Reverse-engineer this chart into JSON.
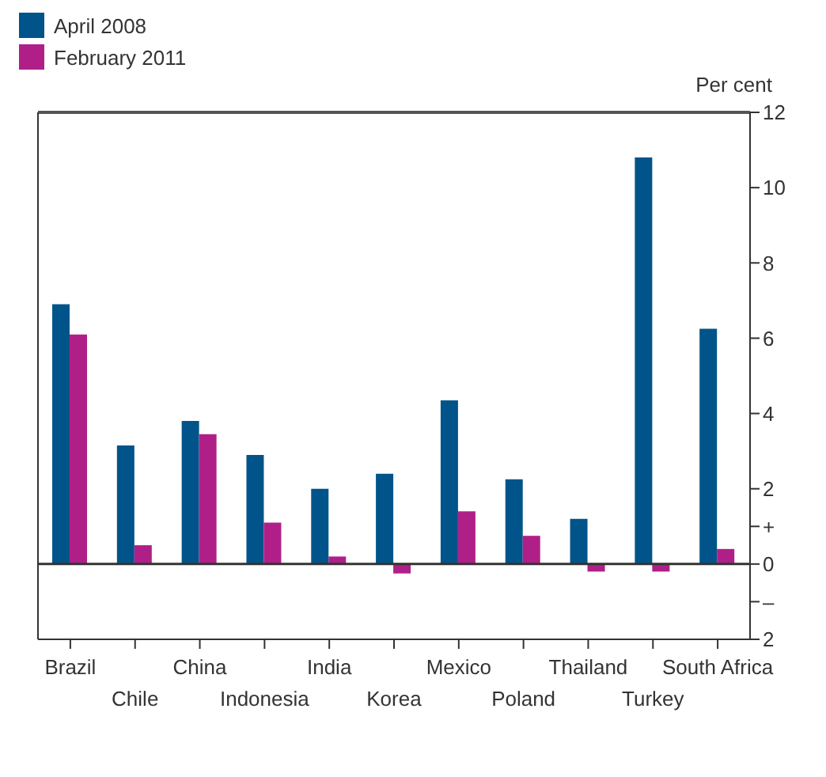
{
  "chart_data": {
    "type": "bar",
    "ylabel": "Per cent",
    "categories": [
      "Brazil",
      "Chile",
      "China",
      "Indonesia",
      "India",
      "Korea",
      "Mexico",
      "Poland",
      "Thailand",
      "Turkey",
      "South Africa"
    ],
    "series": [
      {
        "name": "April 2008",
        "color": "#00548a",
        "values": [
          6.9,
          3.15,
          3.8,
          2.9,
          2.0,
          2.4,
          4.35,
          2.25,
          1.2,
          10.8,
          6.25
        ]
      },
      {
        "name": "February 2011",
        "color": "#b01f88",
        "values": [
          6.1,
          0.5,
          3.45,
          1.1,
          0.2,
          -0.25,
          1.4,
          0.75,
          -0.2,
          -0.2,
          0.4
        ]
      }
    ],
    "ylim": [
      -2,
      12
    ],
    "yticks": [
      {
        "value": -2,
        "label": "2"
      },
      {
        "value": -1,
        "label": "–"
      },
      0,
      {
        "value": 1,
        "label": "+"
      },
      2,
      4,
      6,
      8,
      10,
      12
    ],
    "ref_lines": [
      {
        "axis": "y",
        "value": 0
      }
    ],
    "legend": "top left"
  }
}
